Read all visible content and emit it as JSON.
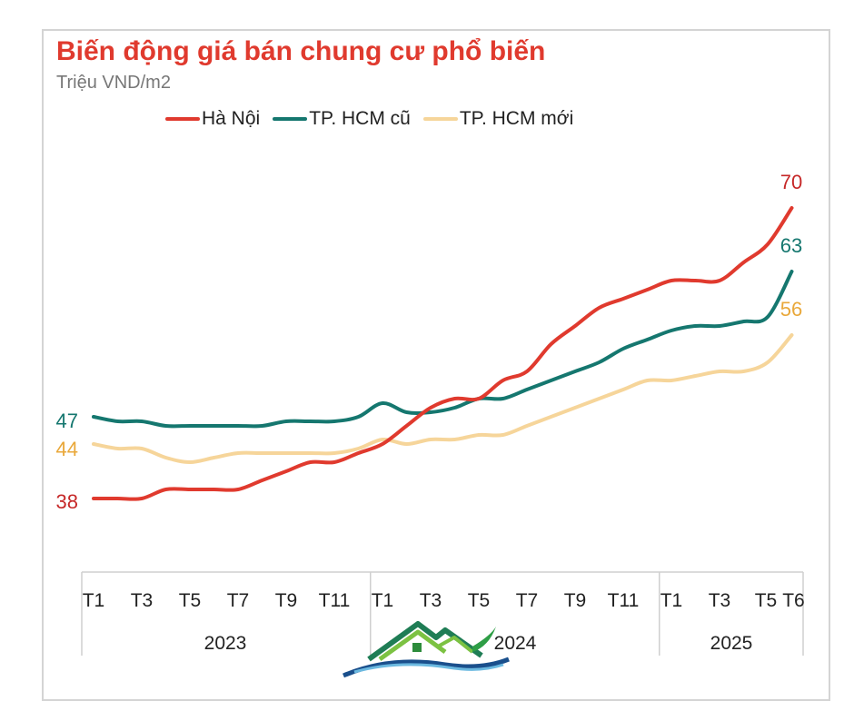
{
  "chart_data": {
    "type": "line",
    "title": "Biến động giá bán chung cư phổ biến",
    "subtitle": "Triệu VND/m2",
    "x": [
      "T1",
      "T2",
      "T3",
      "T4",
      "T5",
      "T6",
      "T7",
      "T8",
      "T9",
      "T10",
      "T11",
      "T12",
      "T1",
      "T2",
      "T3",
      "T4",
      "T5",
      "T6",
      "T7",
      "T8",
      "T9",
      "T10",
      "T11",
      "T12",
      "T1",
      "T2",
      "T3",
      "T4",
      "T5",
      "T6"
    ],
    "x_tick_labels": [
      "T1",
      "T3",
      "T5",
      "T7",
      "T9",
      "T11",
      "T1",
      "T3",
      "T5",
      "T7",
      "T9",
      "T11",
      "T1",
      "T3",
      "T5",
      "T6"
    ],
    "groups": [
      {
        "label": "2023",
        "start": 0,
        "end": 11
      },
      {
        "label": "2024",
        "start": 12,
        "end": 23
      },
      {
        "label": "2025",
        "start": 24,
        "end": 29
      }
    ],
    "legend_position": "top",
    "grid": false,
    "ylim": [
      30,
      75
    ],
    "series": [
      {
        "name": "Hà Nội",
        "color": "#e03a2e",
        "label_color": "#c62828",
        "start_label": "38",
        "end_label": "70",
        "values": [
          38,
          38,
          38,
          39,
          39,
          39,
          39,
          40,
          41,
          42,
          42,
          43,
          44,
          46,
          48,
          49,
          49,
          51,
          52,
          55,
          57,
          59,
          60,
          61,
          62,
          62,
          62,
          64,
          66,
          70
        ]
      },
      {
        "name": "TP. HCM cũ",
        "color": "#15776f",
        "label_color": "#15776f",
        "start_label": "47",
        "end_label": "63",
        "values": [
          47,
          46.5,
          46.5,
          46,
          46,
          46,
          46,
          46,
          46.5,
          46.5,
          46.5,
          47,
          48.5,
          47.5,
          47.5,
          48,
          49,
          49,
          50,
          51,
          52,
          53,
          54.5,
          55.5,
          56.5,
          57,
          57,
          57.5,
          58,
          63
        ]
      },
      {
        "name": "TP. HCM mới",
        "color": "#f6d59a",
        "label_color": "#e9a83a",
        "start_label": "44",
        "end_label": "56",
        "values": [
          44,
          43.5,
          43.5,
          42.5,
          42,
          42.5,
          43,
          43,
          43,
          43,
          43,
          43.5,
          44.5,
          44,
          44.5,
          44.5,
          45,
          45,
          46,
          47,
          48,
          49,
          50,
          51,
          51,
          51.5,
          52,
          52,
          53,
          56
        ]
      }
    ]
  }
}
